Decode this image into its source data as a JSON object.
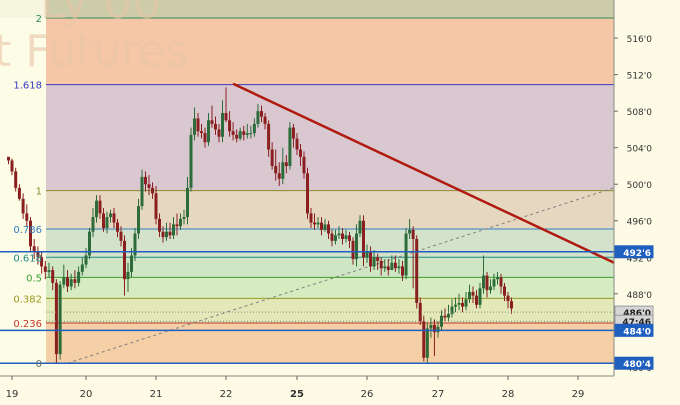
{
  "watermark": {
    "line1": "Ly 00",
    "line2": "t Futures"
  },
  "chart_data": {
    "type": "candlestick",
    "y_axis": {
      "range": [
        479.0,
        518.2
      ],
      "ticks": [
        "516'0",
        "512'0",
        "508'0",
        "504'0",
        "500'0",
        "496'0",
        "492'0",
        "488'0",
        "484'0",
        "480'0"
      ],
      "tick_values": [
        516,
        512,
        508,
        504,
        500,
        496,
        492,
        488,
        484,
        480
      ]
    },
    "x_axis": {
      "labels": [
        "19",
        "20",
        "21",
        "22",
        "25",
        "26",
        "27",
        "28",
        "29"
      ],
      "bold_labels": [
        "25"
      ],
      "range": [
        19.0,
        29.9
      ]
    },
    "fibonacci": {
      "levels": [
        {
          "label": "2",
          "ratio": 2,
          "price": 518.2,
          "color": "#2e8b57"
        },
        {
          "label": "1.618",
          "ratio": 1.618,
          "price": 510.9,
          "color": "#3b3bc0"
        },
        {
          "label": "1",
          "ratio": 1,
          "price": 499.3,
          "color": "#8a8a2e"
        },
        {
          "label": "0.786",
          "ratio": 0.786,
          "price": 495.1,
          "color": "#2f7fbf"
        },
        {
          "label": "0.618",
          "ratio": 0.618,
          "price": 492.0,
          "color": "#1f8a8a"
        },
        {
          "label": "0.5",
          "ratio": 0.5,
          "price": 489.8,
          "color": "#3aa02e"
        },
        {
          "label": "0.382",
          "ratio": 0.382,
          "price": 487.5,
          "color": "#9a9a20"
        },
        {
          "label": "0.236",
          "ratio": 0.236,
          "price": 484.8,
          "color": "#c0392b"
        },
        {
          "label": "0",
          "ratio": 0,
          "price": 480.4,
          "color": "#6b6b6b"
        }
      ]
    },
    "price_tags": [
      {
        "text": "492'6",
        "price": 492.6,
        "style": "blue",
        "line": true
      },
      {
        "text": "486'0",
        "price": 486.0,
        "style": "gray",
        "line": false
      },
      {
        "text": "47:46",
        "price": 485.0,
        "style": "gray",
        "line": false
      },
      {
        "text": "484'0",
        "price": 484.0,
        "style": "blue",
        "line": true
      },
      {
        "text": "480'4",
        "price": 480.4,
        "style": "blue",
        "line": true
      }
    ],
    "trendline": {
      "x": [
        22.1,
        29.1
      ],
      "y": [
        511.0,
        478.8
      ],
      "color": "#b01a10"
    },
    "dashed_line": {
      "x": [
        19.75,
        30.4
      ],
      "y": [
        480.4,
        499.6
      ],
      "color": "#808080"
    },
    "candles": [
      [
        18.95,
        503.0,
        502.6,
        503.0,
        502.2
      ],
      [
        19.0,
        502.6,
        501.4,
        502.8,
        501.0
      ],
      [
        19.05,
        501.4,
        499.6,
        501.8,
        499.2
      ],
      [
        19.1,
        499.6,
        498.4,
        500.0,
        498.2
      ],
      [
        19.15,
        498.4,
        496.8,
        499.0,
        496.2
      ],
      [
        19.2,
        496.8,
        496.0,
        497.8,
        495.4
      ],
      [
        19.25,
        496.0,
        493.2,
        496.4,
        492.6
      ],
      [
        19.3,
        493.2,
        492.6,
        494.0,
        491.8
      ],
      [
        19.35,
        492.6,
        492.0,
        493.2,
        491.2
      ],
      [
        19.4,
        492.0,
        491.0,
        492.6,
        490.2
      ],
      [
        19.45,
        491.0,
        490.4,
        491.6,
        489.6
      ],
      [
        19.5,
        490.4,
        490.6,
        491.4,
        489.8
      ],
      [
        19.55,
        490.6,
        489.2,
        491.0,
        488.4
      ],
      [
        19.6,
        489.2,
        481.4,
        489.6,
        480.4
      ],
      [
        19.65,
        481.4,
        489.0,
        489.4,
        480.8
      ],
      [
        19.7,
        489.0,
        489.8,
        491.2,
        488.6
      ],
      [
        19.75,
        489.8,
        488.8,
        490.6,
        488.2
      ],
      [
        19.8,
        488.8,
        489.6,
        490.2,
        488.4
      ],
      [
        19.85,
        489.6,
        489.2,
        490.6,
        488.6
      ],
      [
        19.9,
        489.2,
        490.4,
        491.0,
        488.8
      ],
      [
        19.95,
        490.4,
        491.2,
        492.0,
        490.0
      ],
      [
        20.0,
        491.2,
        492.2,
        493.0,
        490.8
      ],
      [
        20.05,
        492.2,
        494.8,
        495.2,
        491.8
      ],
      [
        20.1,
        494.8,
        496.4,
        497.4,
        494.2
      ],
      [
        20.15,
        496.4,
        498.2,
        498.8,
        495.8
      ],
      [
        20.2,
        498.2,
        496.8,
        498.8,
        496.2
      ],
      [
        20.25,
        496.8,
        495.2,
        497.4,
        494.8
      ],
      [
        20.3,
        495.2,
        496.4,
        497.0,
        494.6
      ],
      [
        20.35,
        496.4,
        496.8,
        497.2,
        495.8
      ],
      [
        20.4,
        496.8,
        495.8,
        497.4,
        495.2
      ],
      [
        20.45,
        495.8,
        494.8,
        496.2,
        494.2
      ],
      [
        20.5,
        494.8,
        493.8,
        495.4,
        493.2
      ],
      [
        20.55,
        493.8,
        489.6,
        494.4,
        487.8
      ],
      [
        20.6,
        489.6,
        490.4,
        491.4,
        488.2
      ],
      [
        20.65,
        490.4,
        492.2,
        493.0,
        489.8
      ],
      [
        20.7,
        492.2,
        494.6,
        495.2,
        491.6
      ],
      [
        20.75,
        494.6,
        497.6,
        498.4,
        494.0
      ],
      [
        20.8,
        497.6,
        500.8,
        501.6,
        497.2
      ],
      [
        20.85,
        500.8,
        500.0,
        501.4,
        499.2
      ],
      [
        20.9,
        500.0,
        499.6,
        501.0,
        498.8
      ],
      [
        20.95,
        499.6,
        499.0,
        500.2,
        498.4
      ],
      [
        21.0,
        499.0,
        496.2,
        499.8,
        495.6
      ],
      [
        21.05,
        496.2,
        494.8,
        496.8,
        494.2
      ],
      [
        21.1,
        494.8,
        494.2,
        495.4,
        493.6
      ],
      [
        21.15,
        494.2,
        494.8,
        495.8,
        493.8
      ],
      [
        21.2,
        494.8,
        494.4,
        495.8,
        494.0
      ],
      [
        21.25,
        494.4,
        495.6,
        496.4,
        494.0
      ],
      [
        21.3,
        495.6,
        495.4,
        496.8,
        494.4
      ],
      [
        21.35,
        495.4,
        496.2,
        496.8,
        495.0
      ],
      [
        21.4,
        496.2,
        496.4,
        497.2,
        495.6
      ],
      [
        21.45,
        496.4,
        499.6,
        500.8,
        495.6
      ],
      [
        21.5,
        499.6,
        505.4,
        506.2,
        499.2
      ],
      [
        21.55,
        505.4,
        507.2,
        508.4,
        504.8
      ],
      [
        21.6,
        507.2,
        505.8,
        507.8,
        505.2
      ],
      [
        21.65,
        505.8,
        505.6,
        506.6,
        505.0
      ],
      [
        21.7,
        505.6,
        504.6,
        506.2,
        504.0
      ],
      [
        21.75,
        504.6,
        507.0,
        507.8,
        504.2
      ],
      [
        21.8,
        507.0,
        506.6,
        508.6,
        506.2
      ],
      [
        21.85,
        506.6,
        506.0,
        507.4,
        505.4
      ],
      [
        21.9,
        506.0,
        505.2,
        506.6,
        504.6
      ],
      [
        21.95,
        505.2,
        507.8,
        509.2,
        504.6
      ],
      [
        22.0,
        507.8,
        507.0,
        510.6,
        506.8
      ],
      [
        22.05,
        507.0,
        505.8,
        508.0,
        505.2
      ],
      [
        22.1,
        505.8,
        505.4,
        506.8,
        504.8
      ],
      [
        22.15,
        505.4,
        505.0,
        506.0,
        504.6
      ],
      [
        22.2,
        505.0,
        505.8,
        506.2,
        504.8
      ],
      [
        22.25,
        505.8,
        505.4,
        506.4,
        504.8
      ],
      [
        22.3,
        505.4,
        505.6,
        506.6,
        505.0
      ],
      [
        22.35,
        505.6,
        505.6,
        506.4,
        505.0
      ],
      [
        22.4,
        505.6,
        506.6,
        507.2,
        505.2
      ],
      [
        22.45,
        506.6,
        508.0,
        508.8,
        506.2
      ],
      [
        22.5,
        508.0,
        507.4,
        508.6,
        506.8
      ],
      [
        22.55,
        507.4,
        506.6,
        507.8,
        506.0
      ],
      [
        22.6,
        506.6,
        503.8,
        507.0,
        503.0
      ],
      [
        22.65,
        503.8,
        502.0,
        504.6,
        501.6
      ],
      [
        22.7,
        502.0,
        501.2,
        503.8,
        500.4
      ],
      [
        22.75,
        501.2,
        500.6,
        502.4,
        499.8
      ],
      [
        22.8,
        500.6,
        502.4,
        504.0,
        500.0
      ],
      [
        22.85,
        502.4,
        502.0,
        503.2,
        501.2
      ],
      [
        22.9,
        502.0,
        506.2,
        506.8,
        501.6
      ],
      [
        22.95,
        506.2,
        505.0,
        506.6,
        504.0
      ],
      [
        23.0,
        505.0,
        503.8,
        505.6,
        503.2
      ],
      [
        23.05,
        503.8,
        503.0,
        504.4,
        502.0
      ],
      [
        23.1,
        503.0,
        501.2,
        503.6,
        500.6
      ],
      [
        23.15,
        501.2,
        496.8,
        501.8,
        496.2
      ],
      [
        23.2,
        496.8,
        495.8,
        497.4,
        495.2
      ],
      [
        23.25,
        495.8,
        495.6,
        496.8,
        495.0
      ],
      [
        23.3,
        495.6,
        495.8,
        496.4,
        495.2
      ],
      [
        23.35,
        495.8,
        495.0,
        496.4,
        494.4
      ],
      [
        23.4,
        495.0,
        495.6,
        496.2,
        494.8
      ],
      [
        23.45,
        495.6,
        494.6,
        496.0,
        494.0
      ],
      [
        23.5,
        494.6,
        493.8,
        495.0,
        493.2
      ],
      [
        23.55,
        493.8,
        494.4,
        495.0,
        493.4
      ],
      [
        23.6,
        494.4,
        494.6,
        495.4,
        494.0
      ],
      [
        23.65,
        494.6,
        494.0,
        495.2,
        493.4
      ],
      [
        23.7,
        494.0,
        494.4,
        495.0,
        493.6
      ],
      [
        23.75,
        494.4,
        493.8,
        494.8,
        493.0
      ],
      [
        23.8,
        493.8,
        491.8,
        494.2,
        491.2
      ],
      [
        23.85,
        491.8,
        494.6,
        495.6,
        491.0
      ],
      [
        23.9,
        494.6,
        496.0,
        496.6,
        494.2
      ],
      [
        23.95,
        496.0,
        492.0,
        496.6,
        491.0
      ],
      [
        24.0,
        492.0,
        492.6,
        493.4,
        491.4
      ],
      [
        24.05,
        492.6,
        491.0,
        493.2,
        490.4
      ],
      [
        24.1,
        491.0,
        492.0,
        492.8,
        490.6
      ],
      [
        24.15,
        492.0,
        491.6,
        492.4,
        490.6
      ],
      [
        24.2,
        491.6,
        490.8,
        492.0,
        490.0
      ],
      [
        24.25,
        490.8,
        491.0,
        491.8,
        490.4
      ],
      [
        24.3,
        491.0,
        490.6,
        491.8,
        490.0
      ],
      [
        24.35,
        490.6,
        491.4,
        492.2,
        490.6
      ],
      [
        24.4,
        491.4,
        490.8,
        492.2,
        490.4
      ],
      [
        24.45,
        490.8,
        491.0,
        491.8,
        490.2
      ],
      [
        24.5,
        491.0,
        490.0,
        491.6,
        489.4
      ],
      [
        24.55,
        490.0,
        494.6,
        495.2,
        489.6
      ],
      [
        24.6,
        494.6,
        495.0,
        496.2,
        494.0
      ],
      [
        24.65,
        495.0,
        494.0,
        495.4,
        488.6
      ],
      [
        24.7,
        494.0,
        487.0,
        494.4,
        486.4
      ],
      [
        24.75,
        487.0,
        485.0,
        487.6,
        484.6
      ],
      [
        24.8,
        485.0,
        481.0,
        485.6,
        480.6
      ],
      [
        24.85,
        481.0,
        484.2,
        484.8,
        480.4
      ],
      [
        24.9,
        484.2,
        484.6,
        485.4,
        483.2
      ],
      [
        24.95,
        484.6,
        483.8,
        485.2,
        481.2
      ],
      [
        25.0,
        483.8,
        484.4,
        485.0,
        483.2
      ],
      [
        25.05,
        484.4,
        485.6,
        486.2,
        484.0
      ],
      [
        25.1,
        485.6,
        485.4,
        486.4,
        485.0
      ],
      [
        25.15,
        485.4,
        485.8,
        486.8,
        485.0
      ],
      [
        25.2,
        485.8,
        486.6,
        487.4,
        485.4
      ],
      [
        25.25,
        486.6,
        486.8,
        487.6,
        486.0
      ],
      [
        25.3,
        486.8,
        487.0,
        488.0,
        486.2
      ],
      [
        25.35,
        487.0,
        486.6,
        487.6,
        486.0
      ],
      [
        25.4,
        486.6,
        487.4,
        488.2,
        486.2
      ],
      [
        25.45,
        487.4,
        488.2,
        489.0,
        487.0
      ],
      [
        25.5,
        488.2,
        487.8,
        488.8,
        487.0
      ],
      [
        25.55,
        487.8,
        486.8,
        488.4,
        486.4
      ],
      [
        25.6,
        486.8,
        488.6,
        489.2,
        486.4
      ],
      [
        25.65,
        488.6,
        490.0,
        492.2,
        488.0
      ],
      [
        25.7,
        490.0,
        488.4,
        490.4,
        487.6
      ],
      [
        25.75,
        488.4,
        488.8,
        489.6,
        488.0
      ],
      [
        25.8,
        488.8,
        489.6,
        490.2,
        488.4
      ],
      [
        25.85,
        489.6,
        489.8,
        490.4,
        489.0
      ],
      [
        25.9,
        489.8,
        488.8,
        490.2,
        488.0
      ],
      [
        25.95,
        488.8,
        487.8,
        489.2,
        487.2
      ],
      [
        26.0,
        487.8,
        487.2,
        488.2,
        486.4
      ],
      [
        26.05,
        487.2,
        486.4,
        487.6,
        485.8
      ]
    ]
  }
}
